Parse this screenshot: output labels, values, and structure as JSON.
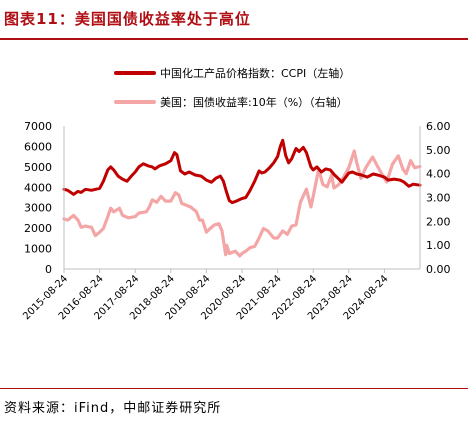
{
  "figure_title": "图表11：美国国债收益率处于高位",
  "source_text": "资料来源：iFind，中邮证券研究所",
  "chart_data": {
    "type": "line",
    "legend_position": "top",
    "grid": false,
    "x_tick_labels": [
      "2015-08-24",
      "2016-08-24",
      "2017-08-24",
      "2018-08-24",
      "2019-08-24",
      "2020-08-24",
      "2021-08-24",
      "2022-08-24",
      "2023-08-24",
      "2024-08-24"
    ],
    "x_range": [
      "2015-08-24",
      "2025-08-24"
    ],
    "left_axis": {
      "range": [
        0,
        7000
      ],
      "ticks": [
        "0",
        "1000",
        "2000",
        "3000",
        "4000",
        "5000",
        "6000",
        "7000"
      ]
    },
    "right_axis": {
      "range": [
        0,
        6
      ],
      "ticks": [
        "0.00",
        "1.00",
        "2.00",
        "3.00",
        "4.00",
        "5.00",
        "6.00"
      ]
    },
    "series": [
      {
        "name": "中国化工产品价格指数：CCPI（左轴）",
        "axis": "left",
        "color": "#c00000",
        "points": [
          [
            "2015-08-24",
            3900
          ],
          [
            "2015-10-01",
            3850
          ],
          [
            "2015-12-01",
            3650
          ],
          [
            "2016-01-15",
            3800
          ],
          [
            "2016-02-15",
            3750
          ],
          [
            "2016-04-01",
            3900
          ],
          [
            "2016-06-01",
            3850
          ],
          [
            "2016-08-24",
            3950
          ],
          [
            "2016-10-01",
            4300
          ],
          [
            "2016-11-15",
            4850
          ],
          [
            "2016-12-15",
            5000
          ],
          [
            "2017-01-15",
            4850
          ],
          [
            "2017-03-01",
            4550
          ],
          [
            "2017-04-15",
            4400
          ],
          [
            "2017-06-01",
            4300
          ],
          [
            "2017-07-15",
            4550
          ],
          [
            "2017-08-24",
            4750
          ],
          [
            "2017-10-01",
            5000
          ],
          [
            "2017-11-15",
            5150
          ],
          [
            "2018-01-01",
            5050
          ],
          [
            "2018-02-15",
            5000
          ],
          [
            "2018-03-15",
            4900
          ],
          [
            "2018-05-01",
            5050
          ],
          [
            "2018-07-01",
            5150
          ],
          [
            "2018-08-24",
            5300
          ],
          [
            "2018-10-01",
            5700
          ],
          [
            "2018-10-25",
            5600
          ],
          [
            "2018-12-01",
            4800
          ],
          [
            "2019-01-15",
            4650
          ],
          [
            "2019-03-01",
            4750
          ],
          [
            "2019-05-01",
            4600
          ],
          [
            "2019-07-01",
            4550
          ],
          [
            "2019-08-24",
            4350
          ],
          [
            "2019-10-15",
            4250
          ],
          [
            "2019-12-01",
            4450
          ],
          [
            "2020-01-15",
            4550
          ],
          [
            "2020-02-15",
            4300
          ],
          [
            "2020-03-15",
            3800
          ],
          [
            "2020-04-15",
            3350
          ],
          [
            "2020-05-15",
            3250
          ],
          [
            "2020-06-15",
            3300
          ],
          [
            "2020-08-24",
            3450
          ],
          [
            "2020-10-01",
            3500
          ],
          [
            "2020-11-15",
            3850
          ],
          [
            "2021-01-01",
            4300
          ],
          [
            "2021-02-15",
            4800
          ],
          [
            "2021-03-15",
            4700
          ],
          [
            "2021-04-15",
            4750
          ],
          [
            "2021-06-01",
            4950
          ],
          [
            "2021-07-15",
            5200
          ],
          [
            "2021-08-24",
            5500
          ],
          [
            "2021-09-20",
            6000
          ],
          [
            "2021-10-15",
            6300
          ],
          [
            "2021-11-15",
            5550
          ],
          [
            "2021-12-15",
            5200
          ],
          [
            "2022-01-15",
            5400
          ],
          [
            "2022-03-01",
            5900
          ],
          [
            "2022-04-01",
            5750
          ],
          [
            "2022-05-15",
            5950
          ],
          [
            "2022-06-15",
            5700
          ],
          [
            "2022-08-01",
            5000
          ],
          [
            "2022-08-24",
            4850
          ],
          [
            "2022-10-01",
            5000
          ],
          [
            "2022-11-15",
            4750
          ],
          [
            "2023-01-01",
            4900
          ],
          [
            "2023-02-15",
            4850
          ],
          [
            "2023-04-01",
            4600
          ],
          [
            "2023-05-15",
            4400
          ],
          [
            "2023-06-15",
            4250
          ],
          [
            "2023-08-24",
            4700
          ],
          [
            "2023-10-01",
            4750
          ],
          [
            "2023-11-15",
            4650
          ],
          [
            "2024-01-01",
            4600
          ],
          [
            "2024-03-01",
            4500
          ],
          [
            "2024-05-01",
            4650
          ],
          [
            "2024-06-15",
            4600
          ],
          [
            "2024-08-24",
            4500
          ],
          [
            "2024-10-01",
            4350
          ],
          [
            "2024-12-01",
            4400
          ],
          [
            "2025-02-01",
            4350
          ],
          [
            "2025-03-15",
            4250
          ],
          [
            "2025-05-01",
            4050
          ],
          [
            "2025-06-15",
            4150
          ],
          [
            "2025-08-24",
            4100
          ]
        ]
      },
      {
        "name": "美国：国债收益率:10年（%）（右轴）",
        "axis": "right",
        "color": "#f4a6a6",
        "points": [
          [
            "2015-08-24",
            2.1
          ],
          [
            "2015-10-01",
            2.05
          ],
          [
            "2015-12-01",
            2.25
          ],
          [
            "2016-01-15",
            2.05
          ],
          [
            "2016-02-15",
            1.75
          ],
          [
            "2016-04-01",
            1.8
          ],
          [
            "2016-06-01",
            1.75
          ],
          [
            "2016-07-10",
            1.4
          ],
          [
            "2016-08-24",
            1.55
          ],
          [
            "2016-10-01",
            1.7
          ],
          [
            "2016-11-15",
            2.2
          ],
          [
            "2016-12-15",
            2.55
          ],
          [
            "2017-01-15",
            2.4
          ],
          [
            "2017-03-15",
            2.55
          ],
          [
            "2017-04-15",
            2.25
          ],
          [
            "2017-06-15",
            2.15
          ],
          [
            "2017-08-24",
            2.2
          ],
          [
            "2017-10-01",
            2.35
          ],
          [
            "2017-12-15",
            2.4
          ],
          [
            "2018-01-15",
            2.6
          ],
          [
            "2018-02-15",
            2.9
          ],
          [
            "2018-04-01",
            2.8
          ],
          [
            "2018-05-15",
            3.05
          ],
          [
            "2018-07-01",
            2.85
          ],
          [
            "2018-08-24",
            2.85
          ],
          [
            "2018-10-10",
            3.2
          ],
          [
            "2018-11-15",
            3.1
          ],
          [
            "2018-12-15",
            2.75
          ],
          [
            "2019-01-15",
            2.7
          ],
          [
            "2019-03-15",
            2.6
          ],
          [
            "2019-05-15",
            2.4
          ],
          [
            "2019-06-15",
            2.05
          ],
          [
            "2019-07-15",
            2.05
          ],
          [
            "2019-08-24",
            1.55
          ],
          [
            "2019-10-01",
            1.7
          ],
          [
            "2019-11-15",
            1.85
          ],
          [
            "2019-12-31",
            1.9
          ],
          [
            "2020-01-31",
            1.6
          ],
          [
            "2020-03-09",
            0.6
          ],
          [
            "2020-03-20",
            1.0
          ],
          [
            "2020-04-15",
            0.65
          ],
          [
            "2020-06-15",
            0.75
          ],
          [
            "2020-08-01",
            0.55
          ],
          [
            "2020-08-24",
            0.65
          ],
          [
            "2020-10-01",
            0.75
          ],
          [
            "2020-11-15",
            0.9
          ],
          [
            "2021-01-01",
            0.95
          ],
          [
            "2021-02-15",
            1.3
          ],
          [
            "2021-03-31",
            1.7
          ],
          [
            "2021-05-15",
            1.6
          ],
          [
            "2021-07-15",
            1.3
          ],
          [
            "2021-08-24",
            1.3
          ],
          [
            "2021-10-15",
            1.6
          ],
          [
            "2021-12-01",
            1.45
          ],
          [
            "2022-01-15",
            1.8
          ],
          [
            "2022-03-01",
            1.85
          ],
          [
            "2022-04-15",
            2.8
          ],
          [
            "2022-06-15",
            3.35
          ],
          [
            "2022-08-01",
            2.6
          ],
          [
            "2022-08-24",
            3.05
          ],
          [
            "2022-10-20",
            4.2
          ],
          [
            "2022-12-01",
            3.55
          ],
          [
            "2023-01-15",
            3.45
          ],
          [
            "2023-03-01",
            3.95
          ],
          [
            "2023-03-25",
            3.4
          ],
          [
            "2023-05-15",
            3.55
          ],
          [
            "2023-07-01",
            3.85
          ],
          [
            "2023-08-24",
            4.25
          ],
          [
            "2023-10-19",
            4.95
          ],
          [
            "2023-11-15",
            4.45
          ],
          [
            "2023-12-27",
            3.8
          ],
          [
            "2024-02-15",
            4.25
          ],
          [
            "2024-04-25",
            4.7
          ],
          [
            "2024-06-15",
            4.3
          ],
          [
            "2024-08-24",
            3.8
          ],
          [
            "2024-09-16",
            3.65
          ],
          [
            "2024-11-15",
            4.4
          ],
          [
            "2025-01-13",
            4.75
          ],
          [
            "2025-03-01",
            4.2
          ],
          [
            "2025-04-04",
            4.0
          ],
          [
            "2025-05-20",
            4.55
          ],
          [
            "2025-07-01",
            4.25
          ],
          [
            "2025-08-24",
            4.3
          ]
        ]
      }
    ]
  }
}
